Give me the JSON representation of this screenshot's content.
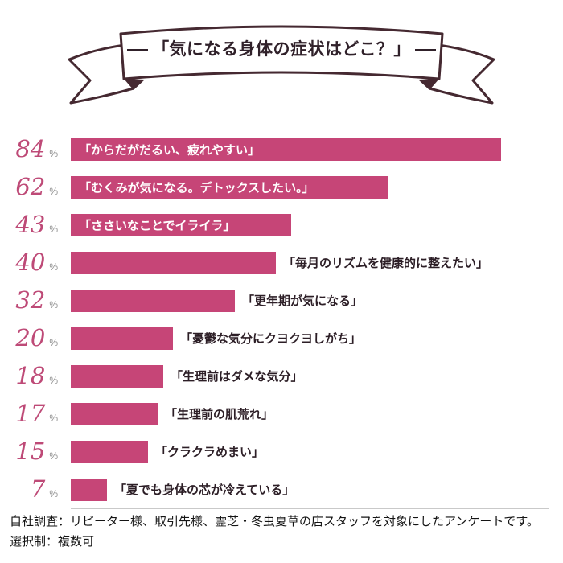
{
  "banner": {
    "title": "「気になる身体の症状はどこ？」"
  },
  "chart_data": {
    "type": "bar",
    "orientation": "horizontal",
    "title": "「気になる身体の症状はどこ？」",
    "unit": "%",
    "xlim": [
      0,
      84
    ],
    "legend": false,
    "grid": false,
    "bar_color": "#c64577",
    "value_color": "#be4a77",
    "categories": [
      "「からだがだるい、疲れやすい」",
      "「むくみが気になる。デトックスしたい。」",
      "「ささいなことでイライラ」",
      "「毎月のリズムを健康的に整えたい」",
      "「更年期が気になる」",
      "「憂鬱な気分にクヨクヨしがち」",
      "「生理前はダメな気分」",
      "「生理前の肌荒れ」",
      "「クラクラめまい」",
      "「夏でも身体の芯が冷えている」"
    ],
    "values": [
      84,
      62,
      43,
      40,
      32,
      20,
      18,
      17,
      15,
      7
    ],
    "label_placement": [
      "inside",
      "inside",
      "inside",
      "outside",
      "outside",
      "outside",
      "outside",
      "outside",
      "outside",
      "outside"
    ]
  },
  "footer": {
    "line1": "自社調査：リピーター様、取引先様、霊芝・冬虫夏草の店スタッフを対象にしたアンケートです。",
    "line2": "選択制：複数可"
  }
}
